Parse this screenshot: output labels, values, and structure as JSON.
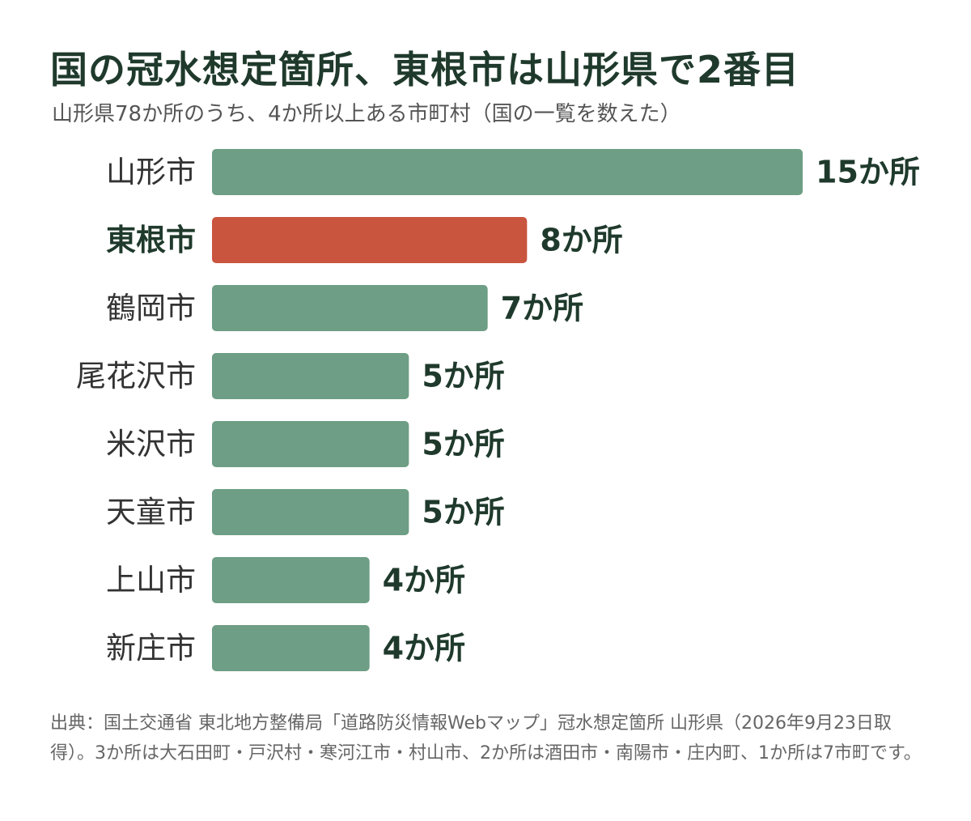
{
  "title": "国の冠水想定箇所、東根市は山形県で2番目",
  "subtitle": "山形県78か所のうち、4か所以上ある市町村（国の一覧を数えた）",
  "source": "出典：国土交通省 東北地方整備局「道路防災情報Webマップ」冠水想定箇所 山形県（2026年9月23日取得）。3か所は大石田町・戸沢村・寒河江市・村山市、2か所は酒田市・南陽市・庄内町、1か所は7市町です。",
  "colors": {
    "bar": "#6e9e85",
    "highlight": "#c9553f",
    "text": "#1f3a2c"
  },
  "chart_data": {
    "type": "bar",
    "orientation": "horizontal",
    "categories": [
      "山形市",
      "東根市",
      "鶴岡市",
      "尾花沢市",
      "米沢市",
      "天童市",
      "上山市",
      "新庄市"
    ],
    "values": [
      15,
      8,
      7,
      5,
      5,
      5,
      4,
      4
    ],
    "value_labels": [
      "15か所",
      "8か所",
      "7か所",
      "5か所",
      "5か所",
      "5か所",
      "4か所",
      "4か所"
    ],
    "highlight": "東根市",
    "xlabel": "",
    "ylabel": "",
    "xlim": [
      0,
      15
    ],
    "grid": false,
    "legend": "none"
  }
}
